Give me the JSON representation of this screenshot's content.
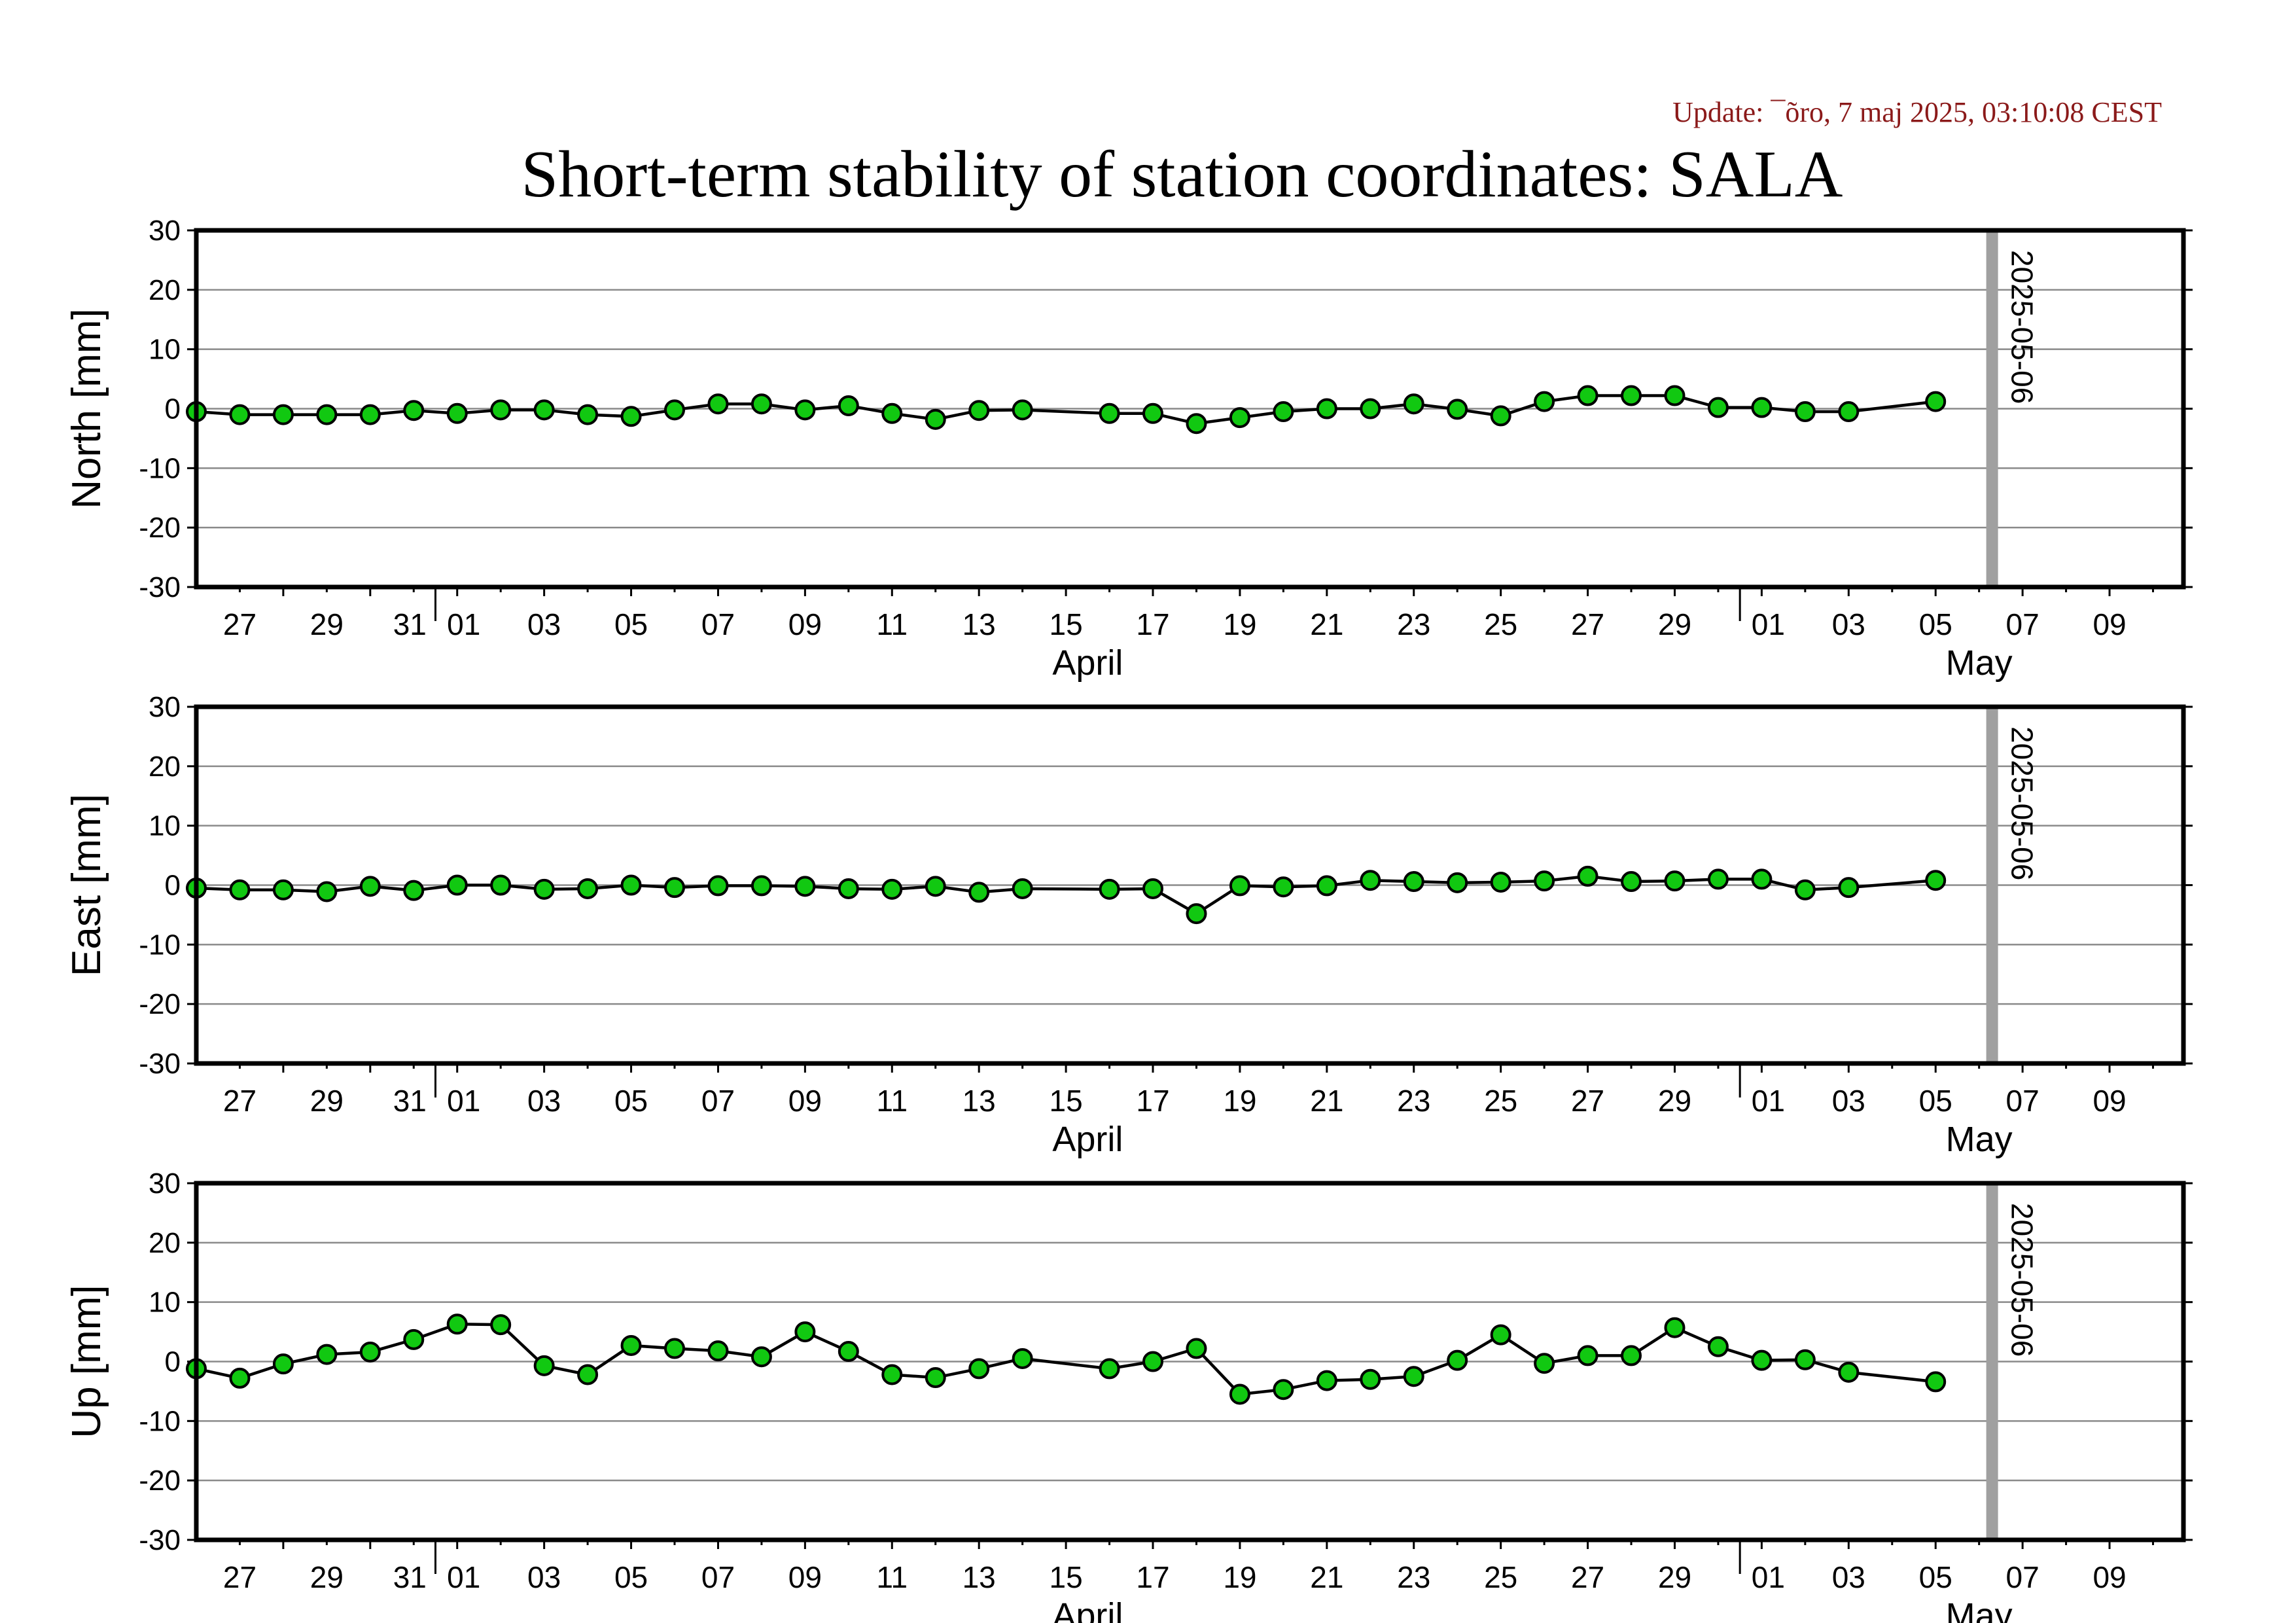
{
  "update_text": "Update: ¯õro, 7 maj 2025, 03:10:08 CEST",
  "title": "Short-term stability of station coordinates: SALA",
  "chart_data": [
    {
      "type": "line",
      "ylabel": "North [mm]",
      "ylim": [
        -30,
        30
      ],
      "yticks": [
        30,
        20,
        10,
        0,
        -10,
        -20,
        -30
      ],
      "grid": true,
      "x_range_days": [
        -5,
        40.7
      ],
      "x_tick_labels": [
        "27",
        "29",
        "31",
        "01",
        "03",
        "05",
        "07",
        "09",
        "11",
        "13",
        "15",
        "17",
        "19",
        "21",
        "23",
        "25",
        "27",
        "29",
        "01",
        "03",
        "05",
        "07",
        "09"
      ],
      "month_labels": [
        "April",
        "May"
      ],
      "marker_label": "2025-05-06",
      "series": [
        {
          "x": [
            "2025-03-26",
            "2025-03-27",
            "2025-03-28",
            "2025-03-29",
            "2025-03-30",
            "2025-03-31",
            "2025-04-01",
            "2025-04-02",
            "2025-04-03",
            "2025-04-04",
            "2025-04-05",
            "2025-04-06",
            "2025-04-07",
            "2025-04-08",
            "2025-04-09",
            "2025-04-10",
            "2025-04-11",
            "2025-04-12",
            "2025-04-13",
            "2025-04-14",
            "2025-04-16",
            "2025-04-17",
            "2025-04-18",
            "2025-04-19",
            "2025-04-20",
            "2025-04-21",
            "2025-04-22",
            "2025-04-23",
            "2025-04-24",
            "2025-04-25",
            "2025-04-26",
            "2025-04-27",
            "2025-04-28",
            "2025-04-29",
            "2025-04-30",
            "2025-05-01",
            "2025-05-02",
            "2025-05-03",
            "2025-05-05"
          ],
          "values": [
            -0.5,
            -1,
            -1,
            -1,
            -1,
            -0.3,
            -0.8,
            -0.2,
            -0.2,
            -1,
            -1.3,
            -0.2,
            0.8,
            0.8,
            -0.2,
            0.5,
            -0.8,
            -1.8,
            -0.3,
            -0.2,
            -0.8,
            -0.8,
            -2.5,
            -1.5,
            -0.5,
            0,
            0,
            0.8,
            -0.1,
            -1.2,
            1.2,
            2.2,
            2.2,
            2.2,
            0.2,
            0.2,
            -0.5,
            -0.5,
            1.2
          ]
        }
      ]
    },
    {
      "type": "line",
      "ylabel": "East [mm]",
      "ylim": [
        -30,
        30
      ],
      "yticks": [
        30,
        20,
        10,
        0,
        -10,
        -20,
        -30
      ],
      "grid": true,
      "x_range_days": [
        -5,
        40.7
      ],
      "x_tick_labels": [
        "27",
        "29",
        "31",
        "01",
        "03",
        "05",
        "07",
        "09",
        "11",
        "13",
        "15",
        "17",
        "19",
        "21",
        "23",
        "25",
        "27",
        "29",
        "01",
        "03",
        "05",
        "07",
        "09"
      ],
      "month_labels": [
        "April",
        "May"
      ],
      "marker_label": "2025-05-06",
      "series": [
        {
          "x": [
            "2025-03-26",
            "2025-03-27",
            "2025-03-28",
            "2025-03-29",
            "2025-03-30",
            "2025-03-31",
            "2025-04-01",
            "2025-04-02",
            "2025-04-03",
            "2025-04-04",
            "2025-04-05",
            "2025-04-06",
            "2025-04-07",
            "2025-04-08",
            "2025-04-09",
            "2025-04-10",
            "2025-04-11",
            "2025-04-12",
            "2025-04-13",
            "2025-04-14",
            "2025-04-16",
            "2025-04-17",
            "2025-04-18",
            "2025-04-19",
            "2025-04-20",
            "2025-04-21",
            "2025-04-22",
            "2025-04-23",
            "2025-04-24",
            "2025-04-25",
            "2025-04-26",
            "2025-04-27",
            "2025-04-28",
            "2025-04-29",
            "2025-04-30",
            "2025-05-01",
            "2025-05-02",
            "2025-05-03",
            "2025-05-05"
          ],
          "values": [
            -0.5,
            -0.8,
            -0.8,
            -1.1,
            -0.2,
            -0.9,
            0,
            0,
            -0.7,
            -0.6,
            0,
            -0.4,
            -0.1,
            -0.1,
            -0.2,
            -0.6,
            -0.7,
            -0.2,
            -1.2,
            -0.6,
            -0.7,
            -0.6,
            -4.8,
            -0.1,
            -0.3,
            -0.1,
            0.8,
            0.6,
            0.4,
            0.5,
            0.7,
            1.5,
            0.6,
            0.7,
            1,
            1,
            -0.8,
            -0.4,
            0.8
          ]
        }
      ]
    },
    {
      "type": "line",
      "ylabel": "Up [mm]",
      "ylim": [
        -30,
        30
      ],
      "yticks": [
        30,
        20,
        10,
        0,
        -10,
        -20,
        -30
      ],
      "grid": true,
      "x_range_days": [
        -5,
        40.7
      ],
      "x_tick_labels": [
        "27",
        "29",
        "31",
        "01",
        "03",
        "05",
        "07",
        "09",
        "11",
        "13",
        "15",
        "17",
        "19",
        "21",
        "23",
        "25",
        "27",
        "29",
        "01",
        "03",
        "05",
        "07",
        "09"
      ],
      "month_labels": [
        "April",
        "May"
      ],
      "marker_label": "2025-05-06",
      "series": [
        {
          "x": [
            "2025-03-26",
            "2025-03-27",
            "2025-03-28",
            "2025-03-29",
            "2025-03-30",
            "2025-03-31",
            "2025-04-01",
            "2025-04-02",
            "2025-04-03",
            "2025-04-04",
            "2025-04-05",
            "2025-04-06",
            "2025-04-07",
            "2025-04-08",
            "2025-04-09",
            "2025-04-10",
            "2025-04-11",
            "2025-04-12",
            "2025-04-13",
            "2025-04-14",
            "2025-04-16",
            "2025-04-17",
            "2025-04-18",
            "2025-04-19",
            "2025-04-20",
            "2025-04-21",
            "2025-04-22",
            "2025-04-23",
            "2025-04-24",
            "2025-04-25",
            "2025-04-26",
            "2025-04-27",
            "2025-04-28",
            "2025-04-29",
            "2025-04-30",
            "2025-05-01",
            "2025-05-02",
            "2025-05-03",
            "2025-05-05"
          ],
          "values": [
            -1.2,
            -2.8,
            -0.4,
            1.2,
            1.6,
            3.7,
            6.3,
            6.2,
            -0.7,
            -2.2,
            2.7,
            2.2,
            1.8,
            0.8,
            5,
            1.7,
            -2.2,
            -2.7,
            -1.2,
            0.5,
            -1.2,
            0,
            2.2,
            -5.5,
            -4.7,
            -3.2,
            -3,
            -2.5,
            0.2,
            4.5,
            -0.3,
            1,
            1,
            5.7,
            2.5,
            0.2,
            0.3,
            -1.8,
            -3.4
          ]
        }
      ]
    }
  ]
}
